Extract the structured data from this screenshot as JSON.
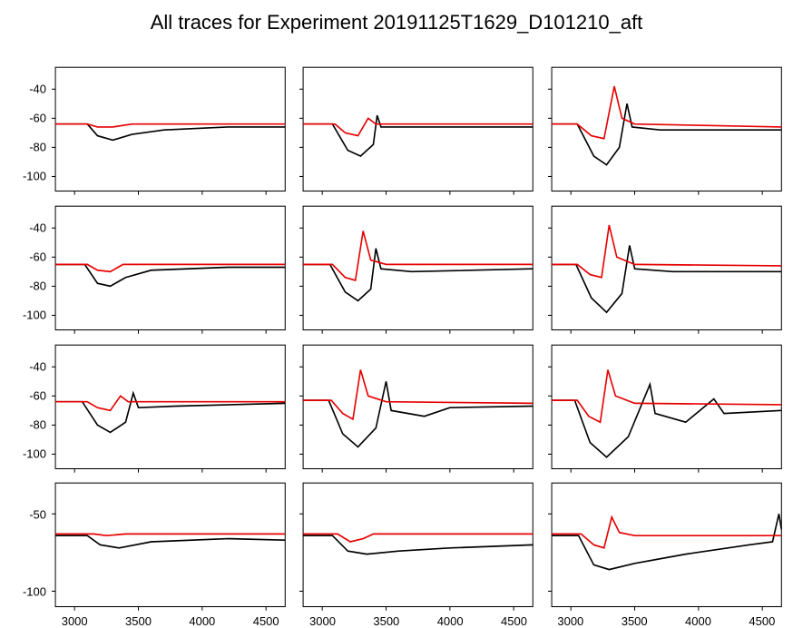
{
  "title": "All traces for Experiment 20191125T1629_D101210_aft",
  "title_fontsize": 22,
  "title_color": "#000000",
  "background_color": "#ffffff",
  "figure_width": 874,
  "figure_height": 656,
  "rows": 4,
  "cols": 3,
  "xlim": [
    2850,
    4650
  ],
  "xticks": [
    3000,
    3500,
    4000,
    4500
  ],
  "row_ylim": [
    {
      "min": -110,
      "max": -25
    },
    {
      "min": -110,
      "max": -25
    },
    {
      "min": -110,
      "max": -25
    },
    {
      "min": -110,
      "max": -30
    }
  ],
  "row_yticks": [
    [
      -40,
      -60,
      -80,
      -100
    ],
    [
      -40,
      -60,
      -80,
      -100
    ],
    [
      -40,
      -60,
      -80,
      -100
    ],
    [
      -50,
      -100
    ]
  ],
  "line_colors": {
    "black": "#000000",
    "red": "#e60000"
  },
  "line_width": 1.6,
  "tick_fontsize": 13,
  "axis_color": "#000000",
  "show_xticks_only_last_row": true,
  "show_yticks_only_first_col": true,
  "subplots": [
    {
      "row": 0,
      "col": 0,
      "black": [
        [
          2850,
          -64
        ],
        [
          3100,
          -64
        ],
        [
          3180,
          -72
        ],
        [
          3300,
          -75
        ],
        [
          3450,
          -71
        ],
        [
          3700,
          -68
        ],
        [
          4200,
          -66
        ],
        [
          4650,
          -66
        ]
      ],
      "red": [
        [
          2850,
          -64
        ],
        [
          3100,
          -64
        ],
        [
          3180,
          -66
        ],
        [
          3300,
          -66
        ],
        [
          3450,
          -64
        ],
        [
          4650,
          -64
        ]
      ]
    },
    {
      "row": 0,
      "col": 1,
      "black": [
        [
          2850,
          -64
        ],
        [
          3080,
          -64
        ],
        [
          3200,
          -82
        ],
        [
          3300,
          -86
        ],
        [
          3400,
          -78
        ],
        [
          3430,
          -58
        ],
        [
          3460,
          -66
        ],
        [
          3700,
          -66
        ],
        [
          4650,
          -66
        ]
      ],
      "red": [
        [
          2850,
          -64
        ],
        [
          3100,
          -64
        ],
        [
          3180,
          -70
        ],
        [
          3280,
          -72
        ],
        [
          3360,
          -60
        ],
        [
          3420,
          -64
        ],
        [
          4650,
          -64
        ]
      ]
    },
    {
      "row": 0,
      "col": 2,
      "black": [
        [
          2850,
          -64
        ],
        [
          3050,
          -64
        ],
        [
          3180,
          -86
        ],
        [
          3280,
          -92
        ],
        [
          3380,
          -80
        ],
        [
          3440,
          -50
        ],
        [
          3480,
          -66
        ],
        [
          3700,
          -68
        ],
        [
          4650,
          -68
        ]
      ],
      "red": [
        [
          2850,
          -64
        ],
        [
          3050,
          -64
        ],
        [
          3160,
          -72
        ],
        [
          3260,
          -74
        ],
        [
          3340,
          -38
        ],
        [
          3400,
          -60
        ],
        [
          3500,
          -64
        ],
        [
          4650,
          -66
        ]
      ]
    },
    {
      "row": 1,
      "col": 0,
      "black": [
        [
          2850,
          -65
        ],
        [
          3080,
          -65
        ],
        [
          3180,
          -78
        ],
        [
          3280,
          -80
        ],
        [
          3400,
          -74
        ],
        [
          3600,
          -69
        ],
        [
          4200,
          -67
        ],
        [
          4650,
          -67
        ]
      ],
      "red": [
        [
          2850,
          -65
        ],
        [
          3100,
          -65
        ],
        [
          3180,
          -69
        ],
        [
          3280,
          -70
        ],
        [
          3380,
          -65
        ],
        [
          4650,
          -65
        ]
      ]
    },
    {
      "row": 1,
      "col": 1,
      "black": [
        [
          2850,
          -65
        ],
        [
          3060,
          -65
        ],
        [
          3180,
          -84
        ],
        [
          3280,
          -90
        ],
        [
          3380,
          -82
        ],
        [
          3420,
          -54
        ],
        [
          3460,
          -68
        ],
        [
          3700,
          -70
        ],
        [
          4650,
          -68
        ]
      ],
      "red": [
        [
          2850,
          -65
        ],
        [
          3080,
          -65
        ],
        [
          3180,
          -74
        ],
        [
          3260,
          -76
        ],
        [
          3320,
          -42
        ],
        [
          3380,
          -62
        ],
        [
          3500,
          -65
        ],
        [
          4650,
          -65
        ]
      ]
    },
    {
      "row": 1,
      "col": 2,
      "black": [
        [
          2850,
          -65
        ],
        [
          3040,
          -65
        ],
        [
          3160,
          -88
        ],
        [
          3280,
          -98
        ],
        [
          3400,
          -85
        ],
        [
          3460,
          -52
        ],
        [
          3500,
          -68
        ],
        [
          3800,
          -70
        ],
        [
          4650,
          -70
        ]
      ],
      "red": [
        [
          2850,
          -65
        ],
        [
          3050,
          -65
        ],
        [
          3150,
          -72
        ],
        [
          3240,
          -74
        ],
        [
          3300,
          -38
        ],
        [
          3360,
          -60
        ],
        [
          3500,
          -65
        ],
        [
          4650,
          -66
        ]
      ]
    },
    {
      "row": 2,
      "col": 0,
      "black": [
        [
          2850,
          -64
        ],
        [
          3060,
          -64
        ],
        [
          3180,
          -80
        ],
        [
          3280,
          -85
        ],
        [
          3400,
          -78
        ],
        [
          3460,
          -58
        ],
        [
          3500,
          -68
        ],
        [
          3800,
          -67
        ],
        [
          4650,
          -65
        ]
      ],
      "red": [
        [
          2850,
          -64
        ],
        [
          3100,
          -64
        ],
        [
          3180,
          -68
        ],
        [
          3280,
          -70
        ],
        [
          3360,
          -60
        ],
        [
          3420,
          -64
        ],
        [
          4650,
          -64
        ]
      ]
    },
    {
      "row": 2,
      "col": 1,
      "black": [
        [
          2850,
          -63
        ],
        [
          3050,
          -63
        ],
        [
          3160,
          -86
        ],
        [
          3280,
          -95
        ],
        [
          3420,
          -82
        ],
        [
          3500,
          -50
        ],
        [
          3540,
          -70
        ],
        [
          3800,
          -74
        ],
        [
          4000,
          -68
        ],
        [
          4650,
          -67
        ]
      ],
      "red": [
        [
          2850,
          -63
        ],
        [
          3070,
          -63
        ],
        [
          3160,
          -72
        ],
        [
          3240,
          -76
        ],
        [
          3300,
          -42
        ],
        [
          3360,
          -60
        ],
        [
          3500,
          -64
        ],
        [
          4650,
          -65
        ]
      ]
    },
    {
      "row": 2,
      "col": 2,
      "black": [
        [
          2850,
          -63
        ],
        [
          3030,
          -63
        ],
        [
          3150,
          -92
        ],
        [
          3280,
          -102
        ],
        [
          3450,
          -88
        ],
        [
          3620,
          -52
        ],
        [
          3660,
          -72
        ],
        [
          3900,
          -78
        ],
        [
          4120,
          -62
        ],
        [
          4200,
          -72
        ],
        [
          4650,
          -70
        ]
      ],
      "red": [
        [
          2850,
          -63
        ],
        [
          3050,
          -63
        ],
        [
          3140,
          -74
        ],
        [
          3230,
          -78
        ],
        [
          3290,
          -42
        ],
        [
          3350,
          -60
        ],
        [
          3500,
          -65
        ],
        [
          4650,
          -66
        ]
      ]
    },
    {
      "row": 3,
      "col": 0,
      "black": [
        [
          2850,
          -64
        ],
        [
          3100,
          -64
        ],
        [
          3200,
          -70
        ],
        [
          3350,
          -72
        ],
        [
          3600,
          -68
        ],
        [
          4200,
          -66
        ],
        [
          4650,
          -67
        ]
      ],
      "red": [
        [
          2850,
          -63
        ],
        [
          3150,
          -63
        ],
        [
          3250,
          -64
        ],
        [
          3400,
          -63
        ],
        [
          4650,
          -63
        ]
      ]
    },
    {
      "row": 3,
      "col": 1,
      "black": [
        [
          2850,
          -64
        ],
        [
          3080,
          -64
        ],
        [
          3200,
          -74
        ],
        [
          3350,
          -76
        ],
        [
          3600,
          -74
        ],
        [
          4000,
          -72
        ],
        [
          4650,
          -70
        ]
      ],
      "red": [
        [
          2850,
          -63
        ],
        [
          3120,
          -63
        ],
        [
          3220,
          -68
        ],
        [
          3320,
          -66
        ],
        [
          3400,
          -63
        ],
        [
          4650,
          -63
        ]
      ]
    },
    {
      "row": 3,
      "col": 2,
      "black": [
        [
          2850,
          -64
        ],
        [
          3060,
          -64
        ],
        [
          3180,
          -83
        ],
        [
          3300,
          -86
        ],
        [
          3500,
          -82
        ],
        [
          3900,
          -76
        ],
        [
          4400,
          -70
        ],
        [
          4580,
          -68
        ],
        [
          4630,
          -50
        ],
        [
          4650,
          -60
        ]
      ],
      "red": [
        [
          2850,
          -63
        ],
        [
          3080,
          -63
        ],
        [
          3180,
          -70
        ],
        [
          3260,
          -72
        ],
        [
          3320,
          -52
        ],
        [
          3380,
          -62
        ],
        [
          3500,
          -64
        ],
        [
          4650,
          -64
        ]
      ]
    }
  ]
}
